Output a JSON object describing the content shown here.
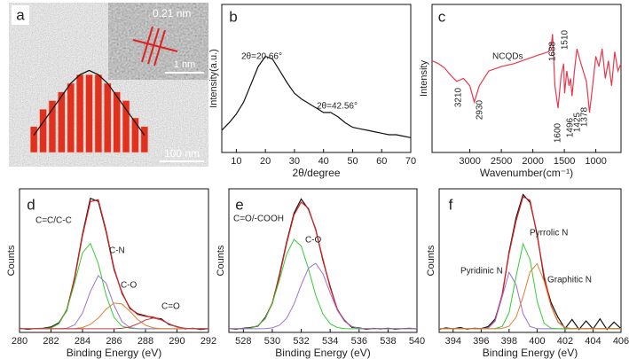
{
  "chart_data": [
    {
      "type": "bar",
      "panel_label": "a",
      "values": [
        3,
        5,
        6,
        7,
        8,
        9,
        9,
        9,
        8,
        7,
        6,
        4,
        3
      ],
      "fit": [
        2,
        3.5,
        5,
        6.5,
        8,
        9,
        9.5,
        9,
        8,
        6.5,
        5,
        3.5,
        2
      ],
      "ylim": [
        0,
        12
      ],
      "color": "#e0301e",
      "annotations": [
        "0.21 nm",
        "1 nm",
        "100 nm"
      ]
    },
    {
      "type": "line",
      "panel_label": "b",
      "ylabel": "Intensity(a.u.)",
      "xlabel": "2θ/degree",
      "x": [
        5,
        7.5,
        10,
        12.5,
        15,
        17.5,
        20,
        22.5,
        25,
        27.5,
        30,
        32.5,
        35,
        37.5,
        40,
        42.5,
        45,
        47.5,
        50,
        52.5,
        55,
        57.5,
        60,
        62.5,
        65,
        67.5,
        70
      ],
      "series": [
        {
          "color": "#111111",
          "values": [
            15,
            20,
            26,
            34,
            46,
            58,
            65,
            63,
            55,
            47,
            40,
            36,
            33,
            30,
            27,
            27,
            24,
            20,
            17,
            16,
            15,
            14,
            13,
            12,
            12,
            11,
            10
          ]
        }
      ],
      "xlim": [
        5,
        70
      ],
      "xticks": [
        10,
        20,
        30,
        40,
        50,
        60,
        70
      ],
      "ylim": [
        0,
        100
      ],
      "annotations": [
        "2θ=20.66°",
        "2θ=42.56°"
      ]
    },
    {
      "type": "line",
      "panel_label": "c",
      "ylabel": "Intensity",
      "xlabel": "Wavenumber(cm⁻¹)",
      "x": [
        3600,
        3500,
        3400,
        3300,
        3210,
        3100,
        3000,
        2930,
        2850,
        2700,
        2500,
        2300,
        2100,
        1900,
        1750,
        1700,
        1688,
        1650,
        1600,
        1550,
        1510,
        1496,
        1460,
        1425,
        1400,
        1378,
        1340,
        1300,
        1250,
        1200,
        1150,
        1100,
        1050,
        1000,
        950,
        900,
        850,
        800,
        750,
        700,
        650,
        600
      ],
      "series": [
        {
          "color": "#e8384f",
          "values": [
            62,
            60,
            57,
            52,
            48,
            50,
            45,
            34,
            45,
            55,
            58,
            60,
            63,
            66,
            68,
            75,
            80,
            45,
            30,
            52,
            60,
            40,
            55,
            45,
            50,
            38,
            55,
            70,
            62,
            55,
            48,
            27,
            45,
            65,
            58,
            70,
            50,
            62,
            45,
            68,
            55,
            60
          ]
        }
      ],
      "xlim": [
        3600,
        600
      ],
      "xticks": [
        3000,
        2500,
        2000,
        1500,
        1000
      ],
      "ylim": [
        0,
        100
      ],
      "annotations": [
        "NCQDs",
        "3210",
        "2930",
        "1688",
        "1510",
        "1600",
        "1496",
        "1425",
        "1378"
      ]
    },
    {
      "type": "line",
      "panel_label": "d",
      "ylabel": "Counts",
      "xlabel": "Binding Energy (eV)",
      "x": [
        280,
        280.5,
        281,
        281.5,
        282,
        282.5,
        283,
        283.5,
        284,
        284.5,
        285,
        285.5,
        286,
        286.5,
        287,
        287.5,
        288,
        288.5,
        289,
        289.5,
        290,
        290.5,
        291,
        291.5,
        292
      ],
      "series": [
        {
          "color": "#111111",
          "values": [
            3.5,
            2.6,
            3.2,
            3.4,
            4.5,
            8.1,
            18.2,
            45.8,
            82.1,
            112,
            109.5,
            84.2,
            52.7,
            33.5,
            20.1,
            15.6,
            13.9,
            12.1,
            11.3,
            6.5,
            4.9,
            2.8,
            3.4,
            2.5,
            3.1
          ]
        },
        {
          "color": "#e02020",
          "values": [
            3,
            3,
            3,
            3.1,
            3.8,
            7.3,
            19.1,
            44.7,
            80.7,
            109.3,
            110.9,
            85.5,
            53.9,
            32.6,
            20.8,
            15,
            13.4,
            12.8,
            10.6,
            7.1,
            4.5,
            3.4,
            3,
            3,
            3
          ]
        },
        {
          "name": "C=C/C-C",
          "color": "#33cc33",
          "values": [
            3,
            3,
            3,
            3.1,
            3.8,
            7.3,
            18.6,
            41.2,
            66.5,
            74.4,
            57.4,
            31,
            12.7,
            5.3,
            3.4,
            3,
            3,
            3,
            3,
            3,
            3,
            3,
            3,
            3,
            3
          ]
        },
        {
          "name": "C-N",
          "color": "#a070d0",
          "values": [
            3,
            3,
            3,
            3,
            3,
            3,
            3.5,
            6.3,
            16.1,
            34.2,
            47.5,
            41.2,
            22.7,
            9.1,
            4.1,
            3.1,
            3,
            3,
            3,
            3,
            3,
            3,
            3,
            3,
            3
          ]
        },
        {
          "name": "C-O",
          "color": "#e08030",
          "values": [
            3,
            3,
            3,
            3,
            3,
            3,
            3,
            3.2,
            4.1,
            6.7,
            12,
            19.3,
            24.5,
            23.8,
            17.8,
            10.8,
            6,
            3.8,
            3.2,
            3,
            3,
            3,
            3,
            3,
            3
          ]
        },
        {
          "name": "C=O",
          "color": "#c04040",
          "values": [
            3,
            3,
            3,
            3,
            3,
            3,
            3,
            3,
            3,
            3,
            3,
            3,
            3,
            3.4,
            4.5,
            7.1,
            10.4,
            12,
            10.4,
            7.1,
            4.5,
            3.4,
            3,
            3,
            3
          ]
        }
      ],
      "xlim": [
        280,
        292
      ],
      "xticks": [
        280,
        282,
        284,
        286,
        288,
        290,
        292
      ],
      "ylim": [
        0,
        120
      ]
    },
    {
      "type": "line",
      "panel_label": "e",
      "ylabel": "Counts",
      "xlabel": "Binding Energy (eV)",
      "x": [
        527,
        527.5,
        528,
        528.5,
        529,
        529.5,
        530,
        530.5,
        531,
        531.5,
        532,
        532.5,
        533,
        533.5,
        534,
        534.5,
        535,
        535.5,
        536,
        536.5,
        537,
        537.5,
        538,
        538.5,
        539,
        539.5,
        540
      ],
      "series": [
        {
          "color": "#111111",
          "values": [
            3.2,
            2.7,
            3.5,
            4.1,
            5.2,
            12.3,
            24.1,
            48.5,
            75.8,
            99.6,
            111.5,
            102.8,
            86.4,
            60.1,
            38.3,
            18.7,
            9.9,
            4.2,
            3.8,
            2.6,
            3.3,
            2.9,
            3.5,
            2.7,
            3.1,
            3.4,
            2.8
          ]
        },
        {
          "color": "#e02020",
          "values": [
            3,
            3,
            3.1,
            3.6,
            5.6,
            11.5,
            24.7,
            47.1,
            74.6,
            98.2,
            108.9,
            103.6,
            85.8,
            61.3,
            37.2,
            19.4,
            9.3,
            4.9,
            3.5,
            3.1,
            3,
            3,
            3,
            3,
            3,
            3,
            3
          ]
        },
        {
          "name": "C=O/-COOH",
          "color": "#33cc33",
          "values": [
            3,
            3,
            3.1,
            3.6,
            5.6,
            11.3,
            23.9,
            44,
            65.6,
            77.6,
            72.2,
            53,
            31.1,
            15.3,
            7.2,
            4.1,
            3.2,
            3,
            3,
            3,
            3,
            3,
            3,
            3,
            3,
            3,
            3
          ]
        },
        {
          "name": "C-O",
          "color": "#a070d0",
          "values": [
            3,
            3,
            3,
            3,
            3,
            3.2,
            3.8,
            6.1,
            12,
            23.6,
            39.7,
            53.6,
            57.7,
            49,
            33,
            18.3,
            9.1,
            4.9,
            3.5,
            3.1,
            3,
            3,
            3,
            3,
            3,
            3,
            3
          ]
        }
      ],
      "xlim": [
        527,
        540
      ],
      "xticks": [
        528,
        530,
        532,
        534,
        536,
        538,
        540
      ],
      "ylim": [
        0,
        120
      ]
    },
    {
      "type": "line",
      "panel_label": "f",
      "ylabel": "Counts",
      "xlabel": "Binding Energy (eV)",
      "x": [
        393,
        393.5,
        394,
        394.5,
        395,
        395.5,
        396,
        396.5,
        397,
        397.5,
        398,
        398.5,
        399,
        399.5,
        400,
        400.5,
        401,
        401.5,
        402,
        402.5,
        403,
        403.5,
        404,
        404.5,
        405,
        405.5,
        406
      ],
      "series": [
        {
          "color": "#111111",
          "values": [
            2.5,
            3.8,
            2.9,
            4.1,
            2.7,
            3.5,
            3.2,
            4.8,
            11.2,
            30.5,
            67.1,
            95.8,
            115.2,
            108.6,
            82.3,
            45.1,
            24.8,
            12.5,
            3.2,
            10.8,
            2.5,
            9.6,
            2.8,
            11.3,
            2.4,
            8.7,
            3.1
          ]
        },
        {
          "color": "#e02020",
          "values": [
            3,
            3,
            3,
            3,
            3,
            3,
            3,
            3.7,
            9.7,
            31.8,
            65.8,
            93.2,
            113.4,
            110.3,
            81,
            47.6,
            22.2,
            8.6,
            4.1,
            3.1,
            3,
            3,
            3,
            3,
            3,
            3,
            3
          ]
        },
        {
          "name": "Pyridinic N",
          "color": "#a070d0",
          "values": [
            3,
            3,
            3,
            3,
            3,
            3,
            3,
            3.7,
            9.5,
            29.5,
            50.2,
            39.9,
            15.6,
            4.9,
            3.1,
            3,
            3,
            3,
            3,
            3,
            3,
            3,
            3,
            3,
            3,
            3,
            3
          ]
        },
        {
          "name": "Pyrrolic N",
          "color": "#33cc33",
          "values": [
            3,
            3,
            3,
            3,
            3,
            3,
            3,
            3,
            3.2,
            5,
            16.4,
            46.7,
            74,
            60.7,
            26.4,
            7.7,
            3.5,
            3,
            3,
            3,
            3,
            3,
            3,
            3,
            3,
            3,
            3
          ]
        },
        {
          "name": "Graphitic N",
          "color": "#e08030",
          "values": [
            3,
            3,
            3,
            3,
            3,
            3,
            3,
            3,
            3,
            3.3,
            5.2,
            12.6,
            29.8,
            50.7,
            57.5,
            42.9,
            21.7,
            8.6,
            4.1,
            3.1,
            3,
            3,
            3,
            3,
            3,
            3,
            3
          ]
        }
      ],
      "xlim": [
        393,
        406
      ],
      "xticks": [
        394,
        396,
        398,
        400,
        402,
        404,
        406
      ],
      "ylim": [
        0,
        120
      ]
    }
  ]
}
